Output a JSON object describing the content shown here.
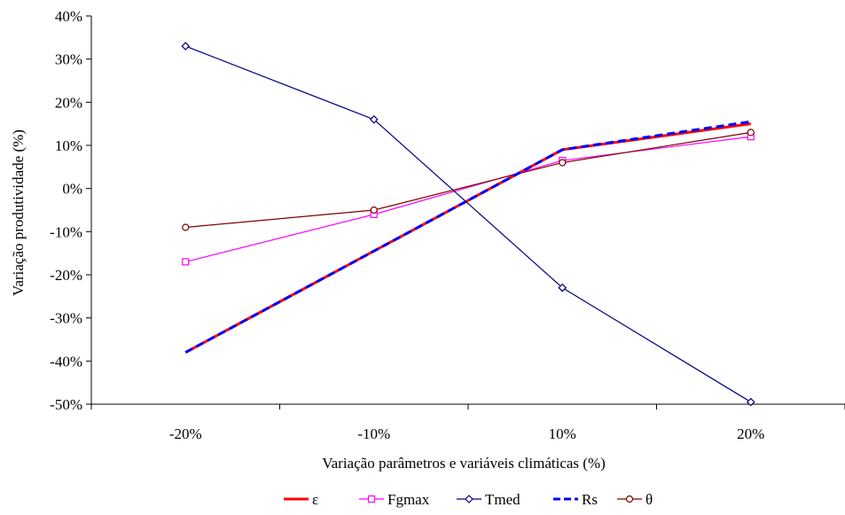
{
  "chart_data": {
    "type": "line",
    "categories": [
      "-20%",
      "-10%",
      "10%",
      "20%"
    ],
    "xlabel": "Variação parâmetros e variáveis climáticas (%)",
    "ylabel": "Variação produtividade (%)",
    "ylim": [
      -50,
      40
    ],
    "yticks": [
      40,
      30,
      20,
      10,
      0,
      -10,
      -20,
      -30,
      -40,
      -50
    ],
    "ytick_labels": [
      "40%",
      "30%",
      "20%",
      "10%",
      "0%",
      "-10%",
      "-20%",
      "-30%",
      "-40%",
      "-50%"
    ],
    "grid": false,
    "legend_position": "bottom",
    "series": [
      {
        "name": "ε",
        "values": [
          -38,
          -14.5,
          9,
          15
        ],
        "color": "#ff0000",
        "marker": "none",
        "dash": "solid"
      },
      {
        "name": "Fgmax",
        "values": [
          -17,
          -6,
          6.5,
          12
        ],
        "color": "#ff00ff",
        "marker": "square",
        "dash": "solid"
      },
      {
        "name": "Tmed",
        "values": [
          33,
          16,
          -23,
          -49.5
        ],
        "color": "#000080",
        "marker": "diamond",
        "dash": "solid"
      },
      {
        "name": "Rs",
        "values": [
          -38,
          -14.5,
          9,
          15.5
        ],
        "color": "#0000ff",
        "marker": "none",
        "dash": "dashed"
      },
      {
        "name": "θ",
        "values": [
          -9,
          -5,
          6,
          13
        ],
        "color": "#800000",
        "marker": "circle",
        "dash": "solid"
      }
    ]
  }
}
